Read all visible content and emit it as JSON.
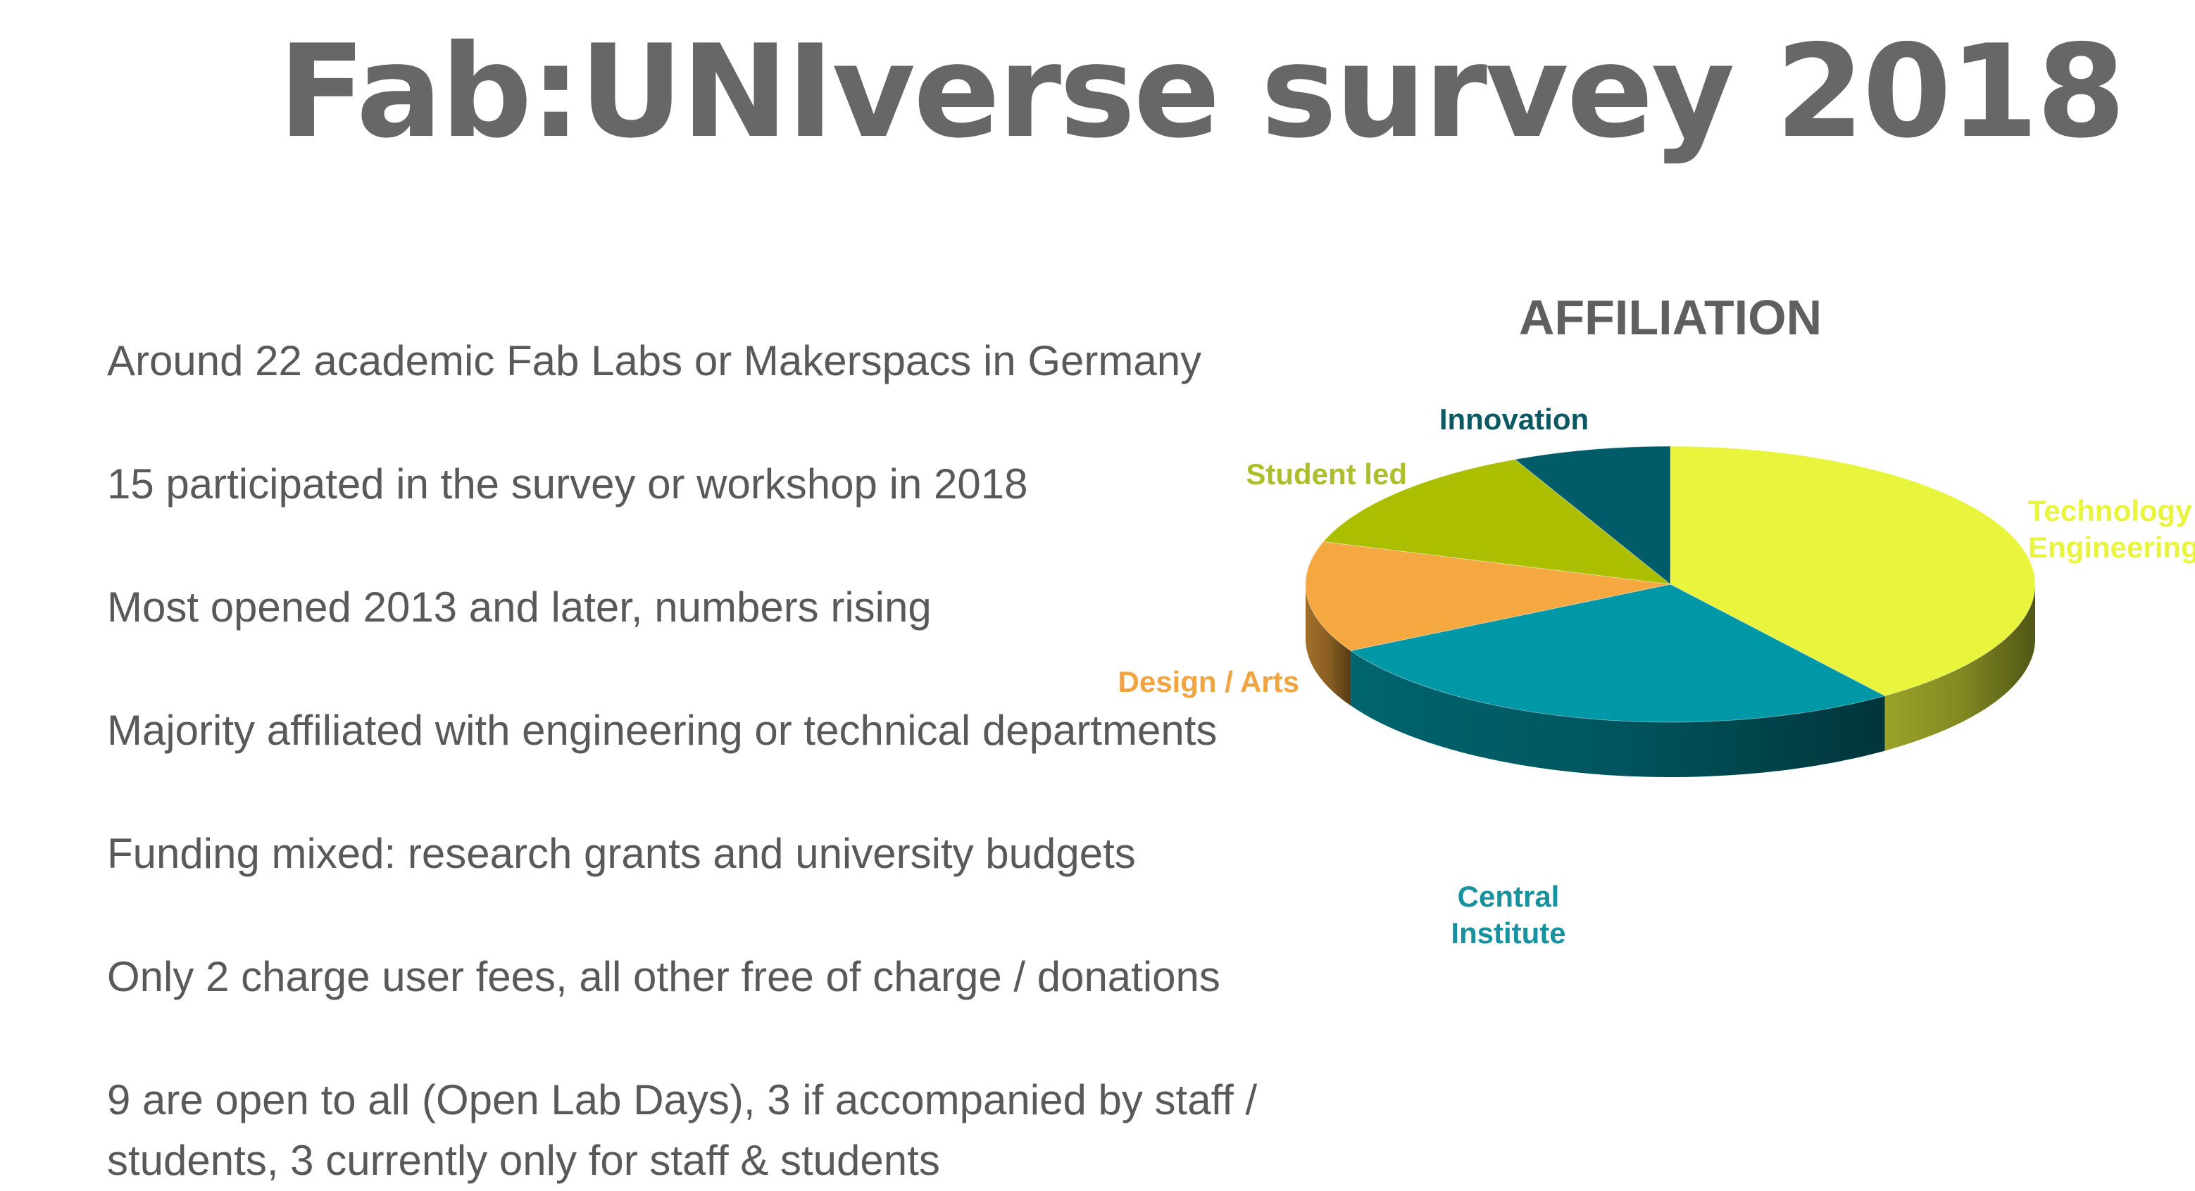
{
  "slide": {
    "title": "Fab:UNIverse survey 2018",
    "bullets": [
      "Around 22 academic Fab Labs or Makerspacs in Germany",
      "15 participated in the survey or workshop in 2018",
      "Most opened 2013 and later, numbers rising",
      "Majority affiliated with engineering or technical departments",
      "Funding mixed: research grants and university budgets",
      "Only 2 charge user fees, all other free of charge / donations",
      "9 are open to all (Open Lab Days), 3 if accompanied by staff / students, 3 currently only for staff & students"
    ]
  },
  "chart_data": {
    "type": "pie",
    "title": "AFFILIATION",
    "slices": [
      {
        "label": "Technology / Engineering",
        "value": 40,
        "color": "#e8f53c",
        "label_color": "#e8f53c"
      },
      {
        "label": "Central Institute",
        "value": 27,
        "color": "#0097a7",
        "label_color": "#17929e"
      },
      {
        "label": "Design / Arts",
        "value": 13,
        "color": "#f5a83f",
        "label_color": "#f0a442"
      },
      {
        "label": "Student led",
        "value": 13,
        "color": "#abbf00",
        "label_color": "#aebd2a"
      },
      {
        "label": "Innovation",
        "value": 7,
        "color": "#005c68",
        "label_color": "#0b5a63"
      }
    ]
  }
}
